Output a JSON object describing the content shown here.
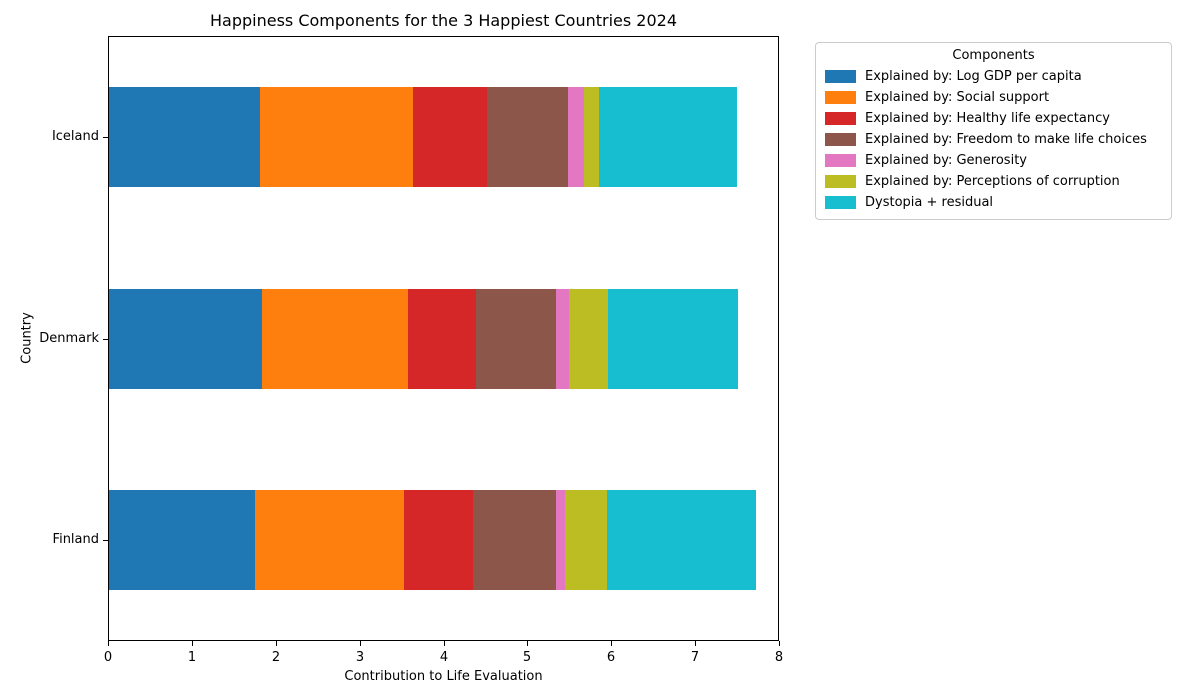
{
  "chart_data": {
    "type": "bar",
    "orientation": "horizontal",
    "stacked": true,
    "title": "Happiness Components for the 3 Happiest Countries 2024",
    "xlabel": "Contribution to Life Evaluation",
    "ylabel": "Country",
    "xlim": [
      0,
      8
    ],
    "xticks": [
      0,
      1,
      2,
      3,
      4,
      5,
      6,
      7,
      8
    ],
    "grid": false,
    "categories": [
      "Iceland",
      "Denmark",
      "Finland"
    ],
    "legend_title": "Components",
    "legend_position": "outside upper right",
    "series": [
      {
        "name": "Explained by: Log GDP per capita",
        "color": "#1f77b4",
        "values": [
          1.8,
          1.826,
          1.749
        ]
      },
      {
        "name": "Explained by: Social support",
        "color": "#ff7f0e",
        "values": [
          1.84,
          1.748,
          1.783
        ]
      },
      {
        "name": "Explained by: Healthy life expectancy",
        "color": "#d62728",
        "values": [
          0.876,
          0.811,
          0.824
        ]
      },
      {
        "name": "Explained by: Freedom to make life choices",
        "color": "#8c564b",
        "values": [
          0.97,
          0.955,
          0.986
        ]
      },
      {
        "name": "Explained by: Generosity",
        "color": "#e377c2",
        "values": [
          0.196,
          0.16,
          0.11
        ]
      },
      {
        "name": "Explained by: Perceptions of corruption",
        "color": "#bcbd22",
        "values": [
          0.178,
          0.47,
          0.502
        ]
      },
      {
        "name": "Dystopia + residual",
        "color": "#17becf",
        "values": [
          1.655,
          1.551,
          1.782
        ]
      }
    ],
    "bar_totals": [
      7.515,
      7.521,
      7.736
    ]
  }
}
